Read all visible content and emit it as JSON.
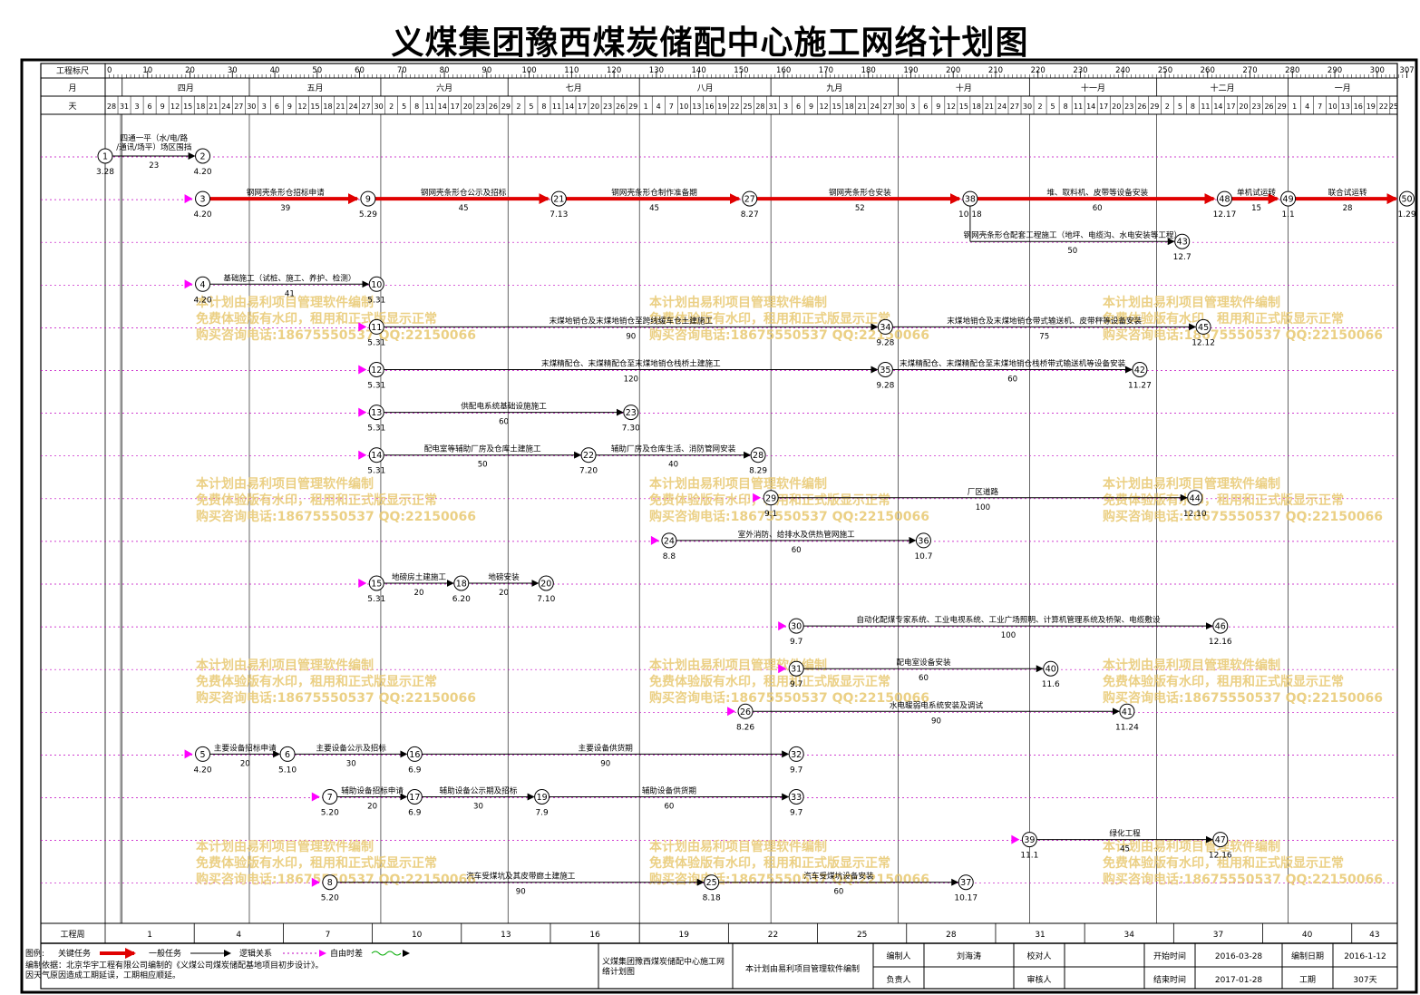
{
  "title": "义煤集团豫西煤炭储配中心施工网络计划图",
  "header": {
    "scale_label": "工程标尺",
    "month_label": "月",
    "day_label": "天",
    "scale_ticks": [
      "0",
      "10",
      "20",
      "30",
      "40",
      "50",
      "60",
      "70",
      "80",
      "90",
      "100",
      "110",
      "120",
      "130",
      "140",
      "150",
      "160",
      "170",
      "180",
      "190",
      "200",
      "210",
      "220",
      "230",
      "240",
      "250",
      "260",
      "270",
      "280",
      "290",
      "300",
      "307"
    ],
    "months": [
      "四月",
      "五月",
      "六月",
      "七月",
      "八月",
      "九月",
      "十月",
      "十一月",
      "十二月",
      "一月"
    ],
    "days": [
      "28",
      "31",
      "3",
      "6",
      "9",
      "12",
      "15",
      "18",
      "21",
      "24",
      "27",
      "30",
      "3",
      "6",
      "9",
      "12",
      "15",
      "18",
      "21",
      "24",
      "27",
      "30",
      "2",
      "5",
      "8",
      "11",
      "14",
      "17",
      "20",
      "23",
      "26",
      "29",
      "2",
      "5",
      "8",
      "11",
      "14",
      "17",
      "20",
      "23",
      "26",
      "29",
      "1",
      "4",
      "7",
      "10",
      "13",
      "16",
      "19",
      "22",
      "25",
      "28",
      "31",
      "3",
      "6",
      "9",
      "12",
      "15",
      "18",
      "21",
      "24",
      "27",
      "30",
      "3",
      "6",
      "9",
      "12",
      "15",
      "18",
      "21",
      "24",
      "27",
      "30",
      "2",
      "5",
      "8",
      "11",
      "14",
      "17",
      "20",
      "23",
      "26",
      "29",
      "2",
      "5",
      "8",
      "11",
      "14",
      "17",
      "20",
      "23",
      "26",
      "29",
      "1",
      "4",
      "7",
      "10",
      "13",
      "16",
      "19",
      "22",
      "25"
    ]
  },
  "footer": {
    "week_label": "工程周",
    "weeks": [
      "1",
      "4",
      "7",
      "10",
      "13",
      "16",
      "19",
      "22",
      "25",
      "28",
      "31",
      "34",
      "37",
      "40",
      "43"
    ],
    "legend": {
      "label": "图例:",
      "critical": "关键任务",
      "normal": "一般任务",
      "logic": "逻辑关系",
      "free": "自由时差"
    },
    "note_line1": "编制依据：北京华宇工程有限公司编制的《义煤公司煤炭储配基地项目初步设计》。",
    "note_line2": "因天气原因造成工期延误，工期相应顺延。",
    "project_name": "义煤集团豫西煤炭储配中心施工网络计划图",
    "software": "本计划由易利项目管理软件编制",
    "prepared_by_label": "编制人",
    "prepared_by": "刘海涛",
    "checked_by_label": "校对人",
    "checked_by": "",
    "responsible_label": "负责人",
    "responsible": "",
    "reviewed_by_label": "审核人",
    "reviewed_by": "",
    "start_label": "开始时间",
    "start": "2016-03-28",
    "end_label": "结束时间",
    "end": "2017-01-28",
    "compile_date_label": "编制日期",
    "compile_date": "2016-1-12",
    "duration_label": "工期",
    "duration": "307天"
  },
  "watermark": {
    "line1": "本计划由易利项目管理软件编制",
    "line2": "免费体验版有水印，租用和正式版显示正常",
    "line3": "购买咨询电话:18675550537 QQ:22150066"
  },
  "nodes": [
    {
      "id": "1",
      "day": 0,
      "row": 0,
      "date": "3.28"
    },
    {
      "id": "2",
      "day": 23,
      "row": 0,
      "date": "4.20"
    },
    {
      "id": "3",
      "day": 23,
      "row": 1,
      "date": "4.20"
    },
    {
      "id": "9",
      "day": 62,
      "row": 1,
      "date": "5.29"
    },
    {
      "id": "21",
      "day": 107,
      "row": 1,
      "date": "7.13"
    },
    {
      "id": "27",
      "day": 152,
      "row": 1,
      "date": "8.27"
    },
    {
      "id": "38",
      "day": 204,
      "row": 1,
      "date": "10.18"
    },
    {
      "id": "48",
      "day": 264,
      "row": 1,
      "date": "12.17"
    },
    {
      "id": "49",
      "day": 279,
      "row": 1,
      "date": "1.1"
    },
    {
      "id": "50",
      "day": 307,
      "row": 1,
      "date": "1.29"
    },
    {
      "id": "43",
      "day": 254,
      "row": 2,
      "date": "12.7"
    },
    {
      "id": "4",
      "day": 23,
      "row": 3,
      "date": "4.20"
    },
    {
      "id": "10",
      "day": 64,
      "row": 3,
      "date": "5.31"
    },
    {
      "id": "11",
      "day": 64,
      "row": 4,
      "date": "5.31"
    },
    {
      "id": "34",
      "day": 184,
      "row": 4,
      "date": "9.28"
    },
    {
      "id": "45",
      "day": 259,
      "row": 4,
      "date": "12.12"
    },
    {
      "id": "12",
      "day": 64,
      "row": 5,
      "date": "5.31"
    },
    {
      "id": "35",
      "day": 184,
      "row": 5,
      "date": "9.28"
    },
    {
      "id": "42",
      "day": 244,
      "row": 5,
      "date": "11.27"
    },
    {
      "id": "13",
      "day": 64,
      "row": 6,
      "date": "5.31"
    },
    {
      "id": "23",
      "day": 124,
      "row": 6,
      "date": "7.30"
    },
    {
      "id": "14",
      "day": 64,
      "row": 7,
      "date": "5.31"
    },
    {
      "id": "22",
      "day": 114,
      "row": 7,
      "date": "7.20"
    },
    {
      "id": "28",
      "day": 154,
      "row": 7,
      "date": "8.29"
    },
    {
      "id": "29",
      "day": 157,
      "row": 8,
      "date": "9.1"
    },
    {
      "id": "44",
      "day": 257,
      "row": 8,
      "date": "12.10"
    },
    {
      "id": "24",
      "day": 133,
      "row": 9,
      "date": "8.8"
    },
    {
      "id": "36",
      "day": 193,
      "row": 9,
      "date": "10.7"
    },
    {
      "id": "15",
      "day": 64,
      "row": 10,
      "date": "5.31"
    },
    {
      "id": "18",
      "day": 84,
      "row": 10,
      "date": "6.20"
    },
    {
      "id": "20",
      "day": 104,
      "row": 10,
      "date": "7.10"
    },
    {
      "id": "30",
      "day": 163,
      "row": 11,
      "date": "9.7"
    },
    {
      "id": "46",
      "day": 263,
      "row": 11,
      "date": "12.16"
    },
    {
      "id": "31",
      "day": 163,
      "row": 12,
      "date": "9.7"
    },
    {
      "id": "40",
      "day": 223,
      "row": 12,
      "date": "11.6"
    },
    {
      "id": "26",
      "day": 151,
      "row": 13,
      "date": "8.26"
    },
    {
      "id": "41",
      "day": 241,
      "row": 13,
      "date": "11.24"
    },
    {
      "id": "5",
      "day": 23,
      "row": 14,
      "date": "4.20"
    },
    {
      "id": "6",
      "day": 43,
      "row": 14,
      "date": "5.10"
    },
    {
      "id": "16",
      "day": 73,
      "row": 14,
      "date": "6.9"
    },
    {
      "id": "32",
      "day": 163,
      "row": 14,
      "date": "9.7"
    },
    {
      "id": "7",
      "day": 53,
      "row": 15,
      "date": "5.20"
    },
    {
      "id": "17",
      "day": 73,
      "row": 15,
      "date": "6.9"
    },
    {
      "id": "19",
      "day": 103,
      "row": 15,
      "date": "7.9"
    },
    {
      "id": "33",
      "day": 163,
      "row": 15,
      "date": "9.7"
    },
    {
      "id": "39",
      "day": 218,
      "row": 16,
      "date": "11.1"
    },
    {
      "id": "47",
      "day": 263,
      "row": 16,
      "date": "12.16"
    },
    {
      "id": "8",
      "day": 53,
      "row": 17,
      "date": "5.20"
    },
    {
      "id": "25",
      "day": 143,
      "row": 17,
      "date": "8.18"
    },
    {
      "id": "37",
      "day": 203,
      "row": 17,
      "date": "10.17"
    }
  ],
  "tasks": [
    {
      "from": "1",
      "to": "2",
      "name": "四通一平（水/电/路/通讯/场平）场区围挡",
      "dur": "23",
      "critical": false
    },
    {
      "from": "3",
      "to": "9",
      "name": "钢网壳条形仓招标申请",
      "dur": "39",
      "critical": true
    },
    {
      "from": "9",
      "to": "21",
      "name": "钢网壳条形仓公示及招标",
      "dur": "45",
      "critical": true
    },
    {
      "from": "21",
      "to": "27",
      "name": "钢网壳条形仓制作准备期",
      "dur": "45",
      "critical": true
    },
    {
      "from": "27",
      "to": "38",
      "name": "钢网壳条形仓安装",
      "dur": "52",
      "critical": true
    },
    {
      "from": "38",
      "to": "48",
      "name": "堆、取料机、皮带等设备安装",
      "dur": "60",
      "critical": true
    },
    {
      "from": "48",
      "to": "49",
      "name": "单机试运转",
      "dur": "15",
      "critical": true
    },
    {
      "from": "49",
      "to": "50",
      "name": "联合试运转",
      "dur": "28",
      "critical": true
    },
    {
      "from": "38",
      "to": "43",
      "name": "钢网壳条形仓配套工程施工（地坪、电缆沟、水电安装等工程）",
      "dur": "50",
      "critical": false
    },
    {
      "from": "4",
      "to": "10",
      "name": "基础施工（试桩、施工、养护、检测）",
      "dur": "41",
      "critical": false
    },
    {
      "from": "11",
      "to": "34",
      "name": "末煤地销仓及末煤地销仓至跨线缓车仓土建施工",
      "dur": "90",
      "critical": false
    },
    {
      "from": "34",
      "to": "45",
      "name": "末煤地销仓及末煤地销仓带式输送机、皮带秤等设备安装",
      "dur": "75",
      "critical": false
    },
    {
      "from": "12",
      "to": "35",
      "name": "末煤精配仓、末煤精配仓至末煤地销仓栈桥土建施工",
      "dur": "120",
      "critical": false
    },
    {
      "from": "35",
      "to": "42",
      "name": "末煤精配仓、末煤精配仓至末煤地销仓栈桥带式输送机等设备安装",
      "dur": "60",
      "critical": false
    },
    {
      "from": "13",
      "to": "23",
      "name": "供配电系统基础设施施工",
      "dur": "60",
      "critical": false
    },
    {
      "from": "14",
      "to": "22",
      "name": "配电室等辅助厂房及仓库土建施工",
      "dur": "50",
      "critical": false
    },
    {
      "from": "22",
      "to": "28",
      "name": "辅助厂房及仓库生活、消防管网安装",
      "dur": "40",
      "critical": false
    },
    {
      "from": "29",
      "to": "44",
      "name": "厂区道路",
      "dur": "100",
      "critical": false
    },
    {
      "from": "24",
      "to": "36",
      "name": "室外消防、给排水及供热管网施工",
      "dur": "60",
      "critical": false
    },
    {
      "from": "15",
      "to": "18",
      "name": "地磅房土建施工",
      "dur": "20",
      "critical": false
    },
    {
      "from": "18",
      "to": "20",
      "name": "地磅安装",
      "dur": "20",
      "critical": false
    },
    {
      "from": "30",
      "to": "46",
      "name": "自动化配煤专家系统、工业电视系统、工业广场照明、计算机管理系统及桥架、电缆敷设",
      "dur": "100",
      "critical": false
    },
    {
      "from": "31",
      "to": "40",
      "name": "配电室设备安装",
      "dur": "60",
      "critical": false
    },
    {
      "from": "26",
      "to": "41",
      "name": "水电暖弱电系统安装及调试",
      "dur": "90",
      "critical": false
    },
    {
      "from": "5",
      "to": "6",
      "name": "主要设备招标申请",
      "dur": "20",
      "critical": false
    },
    {
      "from": "6",
      "to": "16",
      "name": "主要设备公示及招标",
      "dur": "30",
      "critical": false
    },
    {
      "from": "16",
      "to": "32",
      "name": "主要设备供货期",
      "dur": "90",
      "critical": false
    },
    {
      "from": "7",
      "to": "17",
      "name": "辅助设备招标申请",
      "dur": "20",
      "critical": false
    },
    {
      "from": "17",
      "to": "19",
      "name": "辅助设备公示期及招标",
      "dur": "30",
      "critical": false
    },
    {
      "from": "19",
      "to": "33",
      "name": "辅助设备供货期",
      "dur": "60",
      "critical": false
    },
    {
      "from": "39",
      "to": "47",
      "name": "绿化工程",
      "dur": "45",
      "critical": false
    },
    {
      "from": "8",
      "to": "25",
      "name": "汽车受煤坑及其皮带廊土建施工",
      "dur": "90",
      "critical": false
    },
    {
      "from": "25",
      "to": "37",
      "name": "汽车受煤坑设备安装",
      "dur": "60",
      "critical": false
    }
  ]
}
